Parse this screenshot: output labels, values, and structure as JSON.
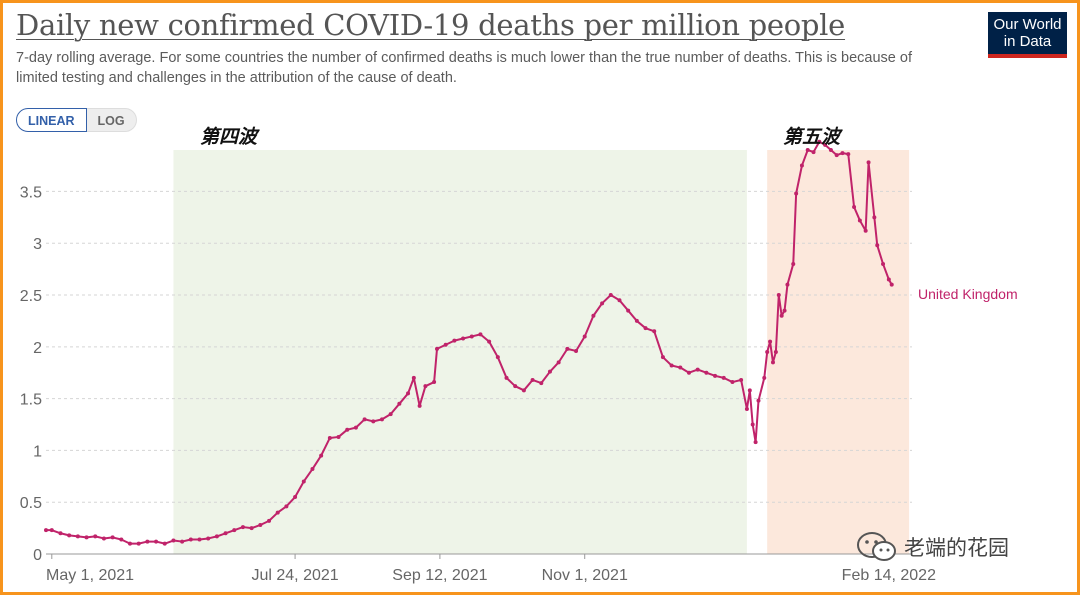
{
  "header": {
    "title": "Daily new confirmed COVID-19 deaths per million people",
    "subtitle": "7-day rolling average. For some countries the number of confirmed deaths is much lower than the true number of deaths. This is because of limited testing and challenges in the attribution of the cause of death.",
    "logo_line1": "Our World",
    "logo_line2": "in Data"
  },
  "controls": {
    "linear_label": "LINEAR",
    "log_label": "LOG",
    "selected": "LINEAR"
  },
  "annotations": {
    "wave4": "第四波",
    "wave5": "第五波"
  },
  "watermark": {
    "text": "老端的花园"
  },
  "colors": {
    "series": "#c0236a",
    "wave4_band": "#eef4e8",
    "wave5_band": "#fce8dc",
    "grid": "#d5d5d5",
    "border": "#f7941d"
  },
  "chart_data": {
    "type": "line",
    "title": "Daily new confirmed COVID-19 deaths per million people",
    "ylim": [
      0,
      3.9
    ],
    "yticks": [
      0,
      0.5,
      1,
      1.5,
      2,
      2.5,
      3,
      3.5
    ],
    "ytick_labels": [
      "0",
      "0.5",
      "1",
      "1.5",
      "2",
      "2.5",
      "3",
      "3.5"
    ],
    "xlim": [
      "2021-04-29",
      "2022-02-22"
    ],
    "xticks": [
      {
        "date": "2021-05-01",
        "label": "May 1, 2021"
      },
      {
        "date": "2021-07-24",
        "label": "Jul 24, 2021"
      },
      {
        "date": "2021-09-12",
        "label": "Sep 12, 2021"
      },
      {
        "date": "2021-11-01",
        "label": "Nov 1, 2021"
      },
      {
        "date": "2022-02-14",
        "label": "Feb 14, 2022"
      }
    ],
    "bands": [
      {
        "name": "wave4",
        "start": "2021-06-12",
        "end": "2021-12-27",
        "ymax": 3.9
      },
      {
        "name": "wave5",
        "start": "2022-01-03",
        "end": "2022-02-21",
        "ymax": 3.9
      }
    ],
    "series": [
      {
        "name": "United Kingdom",
        "points": [
          [
            "2021-04-29",
            0.23
          ],
          [
            "2021-05-01",
            0.23
          ],
          [
            "2021-05-04",
            0.2
          ],
          [
            "2021-05-07",
            0.18
          ],
          [
            "2021-05-10",
            0.17
          ],
          [
            "2021-05-13",
            0.16
          ],
          [
            "2021-05-16",
            0.17
          ],
          [
            "2021-05-19",
            0.15
          ],
          [
            "2021-05-22",
            0.16
          ],
          [
            "2021-05-25",
            0.14
          ],
          [
            "2021-05-28",
            0.1
          ],
          [
            "2021-05-31",
            0.1
          ],
          [
            "2021-06-03",
            0.12
          ],
          [
            "2021-06-06",
            0.12
          ],
          [
            "2021-06-09",
            0.1
          ],
          [
            "2021-06-12",
            0.13
          ],
          [
            "2021-06-15",
            0.12
          ],
          [
            "2021-06-18",
            0.14
          ],
          [
            "2021-06-21",
            0.14
          ],
          [
            "2021-06-24",
            0.15
          ],
          [
            "2021-06-27",
            0.17
          ],
          [
            "2021-06-30",
            0.2
          ],
          [
            "2021-07-03",
            0.23
          ],
          [
            "2021-07-06",
            0.26
          ],
          [
            "2021-07-09",
            0.25
          ],
          [
            "2021-07-12",
            0.28
          ],
          [
            "2021-07-15",
            0.32
          ],
          [
            "2021-07-18",
            0.4
          ],
          [
            "2021-07-21",
            0.46
          ],
          [
            "2021-07-24",
            0.55
          ],
          [
            "2021-07-27",
            0.7
          ],
          [
            "2021-07-30",
            0.82
          ],
          [
            "2021-08-02",
            0.95
          ],
          [
            "2021-08-05",
            1.12
          ],
          [
            "2021-08-08",
            1.13
          ],
          [
            "2021-08-11",
            1.2
          ],
          [
            "2021-08-14",
            1.22
          ],
          [
            "2021-08-17",
            1.3
          ],
          [
            "2021-08-20",
            1.28
          ],
          [
            "2021-08-23",
            1.3
          ],
          [
            "2021-08-26",
            1.35
          ],
          [
            "2021-08-29",
            1.45
          ],
          [
            "2021-09-01",
            1.55
          ],
          [
            "2021-09-03",
            1.7
          ],
          [
            "2021-09-05",
            1.43
          ],
          [
            "2021-09-07",
            1.62
          ],
          [
            "2021-09-10",
            1.66
          ],
          [
            "2021-09-11",
            1.98
          ],
          [
            "2021-09-14",
            2.02
          ],
          [
            "2021-09-17",
            2.06
          ],
          [
            "2021-09-20",
            2.08
          ],
          [
            "2021-09-23",
            2.1
          ],
          [
            "2021-09-26",
            2.12
          ],
          [
            "2021-09-29",
            2.05
          ],
          [
            "2021-10-02",
            1.9
          ],
          [
            "2021-10-05",
            1.7
          ],
          [
            "2021-10-08",
            1.62
          ],
          [
            "2021-10-11",
            1.58
          ],
          [
            "2021-10-14",
            1.68
          ],
          [
            "2021-10-17",
            1.65
          ],
          [
            "2021-10-20",
            1.76
          ],
          [
            "2021-10-23",
            1.85
          ],
          [
            "2021-10-26",
            1.98
          ],
          [
            "2021-10-29",
            1.96
          ],
          [
            "2021-11-01",
            2.1
          ],
          [
            "2021-11-04",
            2.3
          ],
          [
            "2021-11-07",
            2.42
          ],
          [
            "2021-11-10",
            2.5
          ],
          [
            "2021-11-13",
            2.45
          ],
          [
            "2021-11-16",
            2.35
          ],
          [
            "2021-11-19",
            2.25
          ],
          [
            "2021-11-22",
            2.18
          ],
          [
            "2021-11-25",
            2.15
          ],
          [
            "2021-11-28",
            1.9
          ],
          [
            "2021-12-01",
            1.82
          ],
          [
            "2021-12-04",
            1.8
          ],
          [
            "2021-12-07",
            1.75
          ],
          [
            "2021-12-10",
            1.78
          ],
          [
            "2021-12-13",
            1.75
          ],
          [
            "2021-12-16",
            1.72
          ],
          [
            "2021-12-19",
            1.7
          ],
          [
            "2021-12-22",
            1.66
          ],
          [
            "2021-12-25",
            1.68
          ],
          [
            "2021-12-27",
            1.4
          ],
          [
            "2021-12-28",
            1.58
          ],
          [
            "2021-12-29",
            1.25
          ],
          [
            "2021-12-30",
            1.08
          ],
          [
            "2021-12-31",
            1.48
          ],
          [
            "2022-01-02",
            1.7
          ],
          [
            "2022-01-03",
            1.95
          ],
          [
            "2022-01-04",
            2.05
          ],
          [
            "2022-01-05",
            1.85
          ],
          [
            "2022-01-06",
            1.95
          ],
          [
            "2022-01-07",
            2.5
          ],
          [
            "2022-01-08",
            2.3
          ],
          [
            "2022-01-09",
            2.35
          ],
          [
            "2022-01-10",
            2.6
          ],
          [
            "2022-01-12",
            2.8
          ],
          [
            "2022-01-13",
            3.48
          ],
          [
            "2022-01-15",
            3.75
          ],
          [
            "2022-01-17",
            3.9
          ],
          [
            "2022-01-19",
            3.88
          ],
          [
            "2022-01-21",
            3.98
          ],
          [
            "2022-01-23",
            3.95
          ],
          [
            "2022-01-25",
            3.9
          ],
          [
            "2022-01-27",
            3.85
          ],
          [
            "2022-01-29",
            3.87
          ],
          [
            "2022-01-31",
            3.86
          ],
          [
            "2022-02-02",
            3.35
          ],
          [
            "2022-02-04",
            3.22
          ],
          [
            "2022-02-06",
            3.12
          ],
          [
            "2022-02-07",
            3.78
          ],
          [
            "2022-02-09",
            3.25
          ],
          [
            "2022-02-10",
            2.98
          ],
          [
            "2022-02-12",
            2.8
          ],
          [
            "2022-02-14",
            2.65
          ],
          [
            "2022-02-15",
            2.6
          ]
        ]
      }
    ],
    "series_label": "United Kingdom"
  }
}
